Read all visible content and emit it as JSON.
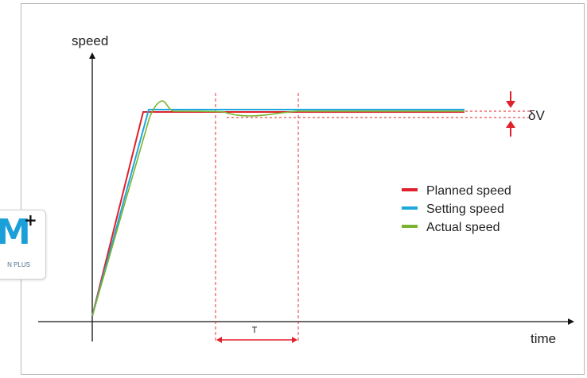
{
  "logo": {
    "letter": "M",
    "plus": "+",
    "text": "N PLUS"
  },
  "diagram": {
    "y_axis_label": "speed",
    "x_axis_label": "time",
    "interval_label": "T",
    "tolerance_label": "δV",
    "legend": [
      {
        "label": "Planned speed",
        "color": "#e0202a"
      },
      {
        "label": "Setting speed",
        "color": "#1ea8e0"
      },
      {
        "label": "Actual speed",
        "color": "#7ab32e"
      }
    ],
    "colors": {
      "axis": "#111111",
      "guide": "#e0202a",
      "frame": "#b9b9b9"
    }
  }
}
